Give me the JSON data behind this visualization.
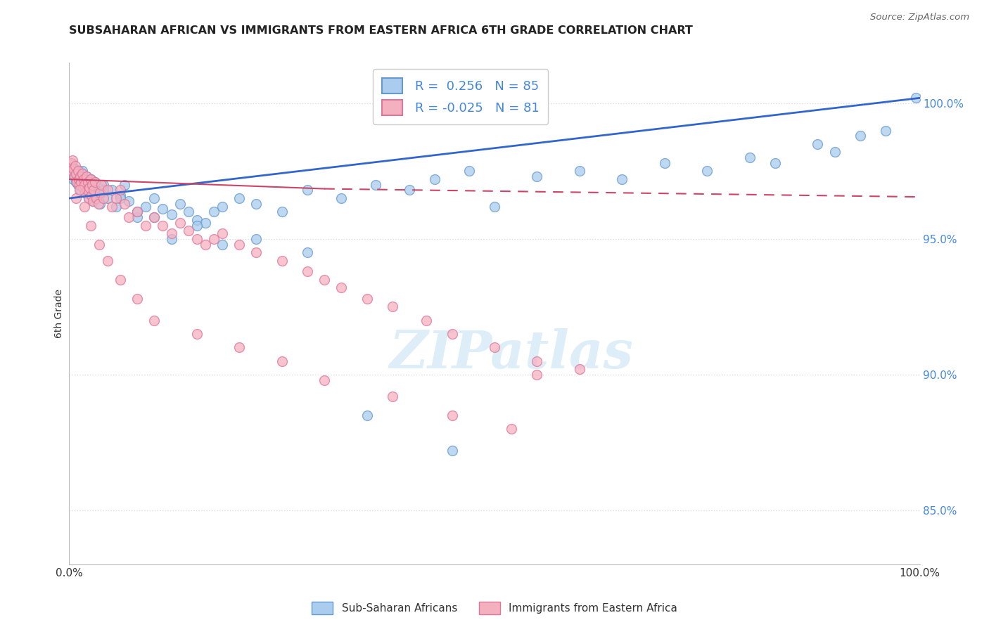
{
  "title": "SUBSAHARAN AFRICAN VS IMMIGRANTS FROM EASTERN AFRICA 6TH GRADE CORRELATION CHART",
  "source": "Source: ZipAtlas.com",
  "ylabel": "6th Grade",
  "xlim": [
    0.0,
    100.0
  ],
  "ylim": [
    83.0,
    101.5
  ],
  "yticks": [
    85.0,
    90.0,
    95.0,
    100.0
  ],
  "ytick_labels": [
    "85.0%",
    "90.0%",
    "95.0%",
    "100.0%"
  ],
  "xtick_labels": [
    "0.0%",
    "100.0%"
  ],
  "blue_label": "Sub-Saharan Africans",
  "pink_label": "Immigrants from Eastern Africa",
  "blue_R": "0.256",
  "blue_N": "85",
  "pink_R": "-0.025",
  "pink_N": "81",
  "blue_face_color": "#aaccee",
  "pink_face_color": "#f5b0c0",
  "blue_edge_color": "#6699cc",
  "pink_edge_color": "#dd7799",
  "trend_blue_color": "#3366cc",
  "trend_pink_color": "#cc4466",
  "watermark_color": "#ddeef8",
  "background_color": "#ffffff",
  "title_color": "#222222",
  "source_color": "#666666",
  "axis_label_color": "#333333",
  "ytick_color": "#4488dd",
  "grid_color": "#dddddd",
  "blue_x": [
    0.3,
    0.4,
    0.5,
    0.6,
    0.7,
    0.8,
    0.9,
    1.0,
    1.1,
    1.2,
    1.3,
    1.4,
    1.5,
    1.6,
    1.7,
    1.8,
    1.9,
    2.0,
    2.1,
    2.2,
    2.3,
    2.4,
    2.5,
    2.6,
    2.7,
    2.8,
    2.9,
    3.0,
    3.2,
    3.4,
    3.6,
    3.8,
    4.0,
    4.5,
    5.0,
    5.5,
    6.0,
    6.5,
    7.0,
    8.0,
    9.0,
    10.0,
    11.0,
    12.0,
    13.0,
    14.0,
    15.0,
    16.0,
    17.0,
    18.0,
    20.0,
    22.0,
    25.0,
    28.0,
    32.0,
    36.0,
    40.0,
    43.0,
    47.0,
    50.0,
    55.0,
    60.0,
    65.0,
    70.0,
    75.0,
    80.0,
    83.0,
    88.0,
    90.0,
    93.0,
    96.0,
    99.5,
    45.0,
    35.0,
    28.0,
    22.0,
    18.0,
    15.0,
    12.0,
    10.0,
    8.0,
    6.0,
    4.0,
    2.5,
    1.5
  ],
  "blue_y": [
    97.8,
    97.5,
    97.2,
    97.6,
    97.4,
    97.1,
    97.3,
    97.0,
    97.5,
    97.2,
    96.8,
    97.1,
    97.4,
    96.9,
    97.2,
    97.0,
    96.7,
    97.3,
    96.8,
    97.1,
    96.5,
    96.9,
    97.2,
    96.6,
    97.0,
    96.4,
    96.8,
    97.1,
    96.5,
    96.9,
    96.3,
    96.7,
    97.0,
    96.5,
    96.8,
    96.2,
    96.6,
    97.0,
    96.4,
    95.8,
    96.2,
    96.5,
    96.1,
    95.9,
    96.3,
    96.0,
    95.7,
    95.6,
    96.0,
    96.2,
    96.5,
    96.3,
    96.0,
    96.8,
    96.5,
    97.0,
    96.8,
    97.2,
    97.5,
    96.2,
    97.3,
    97.5,
    97.2,
    97.8,
    97.5,
    98.0,
    97.8,
    98.5,
    98.2,
    98.8,
    99.0,
    100.2,
    87.2,
    88.5,
    94.5,
    95.0,
    94.8,
    95.5,
    95.0,
    95.8,
    96.0,
    96.5,
    96.8,
    97.2,
    97.5
  ],
  "pink_x": [
    0.2,
    0.3,
    0.4,
    0.5,
    0.6,
    0.7,
    0.8,
    0.9,
    1.0,
    1.1,
    1.2,
    1.3,
    1.4,
    1.5,
    1.6,
    1.7,
    1.8,
    1.9,
    2.0,
    2.1,
    2.2,
    2.3,
    2.4,
    2.5,
    2.6,
    2.7,
    2.8,
    2.9,
    3.0,
    3.2,
    3.4,
    3.6,
    3.8,
    4.0,
    4.5,
    5.0,
    5.5,
    6.0,
    6.5,
    7.0,
    8.0,
    9.0,
    10.0,
    11.0,
    12.0,
    13.0,
    14.0,
    15.0,
    16.0,
    17.0,
    18.0,
    20.0,
    22.0,
    25.0,
    28.0,
    30.0,
    32.0,
    35.0,
    38.0,
    42.0,
    45.0,
    50.0,
    55.0,
    55.0,
    60.0,
    0.8,
    1.2,
    1.8,
    2.5,
    3.5,
    4.5,
    6.0,
    8.0,
    10.0,
    15.0,
    20.0,
    25.0,
    30.0,
    38.0,
    45.0,
    52.0
  ],
  "pink_y": [
    97.8,
    97.5,
    97.9,
    97.6,
    97.3,
    97.7,
    97.4,
    97.1,
    97.5,
    97.2,
    97.0,
    97.3,
    97.1,
    97.4,
    96.9,
    97.2,
    97.0,
    96.7,
    97.3,
    96.8,
    97.1,
    96.5,
    96.9,
    97.2,
    96.6,
    97.0,
    96.4,
    96.8,
    97.1,
    96.5,
    96.3,
    96.7,
    97.0,
    96.5,
    96.8,
    96.2,
    96.5,
    96.8,
    96.3,
    95.8,
    96.0,
    95.5,
    95.8,
    95.5,
    95.2,
    95.6,
    95.3,
    95.0,
    94.8,
    95.0,
    95.2,
    94.8,
    94.5,
    94.2,
    93.8,
    93.5,
    93.2,
    92.8,
    92.5,
    92.0,
    91.5,
    91.0,
    90.5,
    90.0,
    90.2,
    96.5,
    96.8,
    96.2,
    95.5,
    94.8,
    94.2,
    93.5,
    92.8,
    92.0,
    91.5,
    91.0,
    90.5,
    89.8,
    89.2,
    88.5,
    88.0
  ]
}
